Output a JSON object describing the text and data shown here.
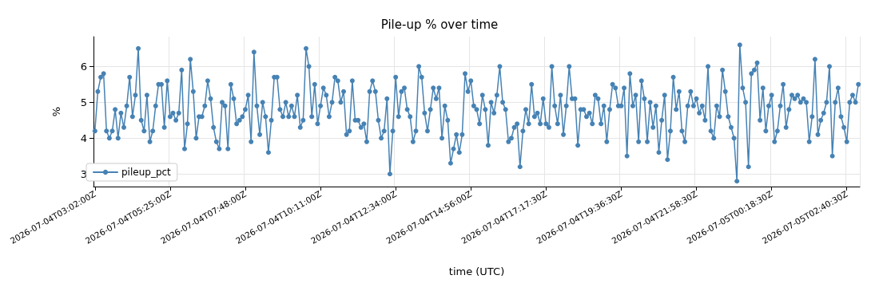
{
  "chart_data": {
    "type": "line",
    "title": "Pile-up % over time",
    "xlabel": "time (UTC)",
    "ylabel": "%",
    "categories": [
      "2026-07-04T03:02:00Z",
      null,
      null,
      null,
      null,
      null,
      null,
      null,
      null,
      null,
      null,
      null,
      null,
      null,
      null,
      null,
      null,
      null,
      null,
      null,
      null,
      null,
      null,
      null,
      null,
      null,
      "2026-07-04T05:25:00Z",
      null,
      null,
      null,
      null,
      null,
      null,
      null,
      null,
      null,
      null,
      null,
      null,
      null,
      null,
      null,
      null,
      null,
      null,
      null,
      null,
      null,
      null,
      null,
      null,
      null,
      "2026-07-04T07:48:00Z",
      null,
      null,
      null,
      null,
      null,
      null,
      null,
      null,
      null,
      null,
      null,
      null,
      null,
      null,
      null,
      null,
      null,
      null,
      null,
      null,
      null,
      null,
      null,
      null,
      null,
      "2026-07-04T10:11:00Z",
      null,
      null,
      null,
      null,
      null,
      null,
      null,
      null,
      null,
      null,
      null,
      null,
      null,
      null,
      null,
      null,
      null,
      null,
      null,
      null,
      null,
      null,
      null,
      null,
      null,
      "2026-07-04T12:34:00Z",
      null,
      null,
      null,
      null,
      null,
      null,
      null,
      null,
      null,
      null,
      null,
      null,
      null,
      null,
      null,
      null,
      null,
      null,
      null,
      null,
      null,
      null,
      null,
      null,
      null,
      "2026-07-04T14:56:00Z",
      null,
      null,
      null,
      null,
      null,
      null,
      null,
      null,
      null,
      null,
      null,
      null,
      null,
      null,
      null,
      null,
      null,
      null,
      null,
      null,
      null,
      null,
      null,
      null,
      null,
      "2026-07-04T17:17:30Z",
      null,
      null,
      null,
      null,
      null,
      null,
      null,
      null,
      null,
      null,
      null,
      null,
      null,
      null,
      null,
      null,
      null,
      null,
      null,
      null,
      null,
      null,
      null,
      null,
      null,
      "2026-07-04T19:36:30Z",
      null,
      null,
      null,
      null,
      null,
      null,
      null,
      null,
      null,
      null,
      null,
      null,
      null,
      null,
      null,
      null,
      null,
      null,
      null,
      null,
      null,
      null,
      null,
      null,
      null,
      "2026-07-04T21:58:30Z",
      null,
      null,
      null,
      null,
      null,
      null,
      null,
      null,
      null,
      null,
      null,
      null,
      null,
      null,
      null,
      null,
      null,
      null,
      null,
      null,
      null,
      null,
      null,
      null,
      null,
      "2026-07-05T00:18:30Z",
      null,
      null,
      null,
      null,
      null,
      null,
      null,
      null,
      null,
      null,
      null,
      null,
      null,
      null,
      null,
      null,
      null,
      null,
      null,
      null,
      null,
      null,
      null,
      null,
      null,
      "2026-07-05T02:40:30Z",
      null,
      null,
      null,
      null
    ],
    "series": [
      {
        "name": "pileup_pct",
        "color": "#4682b4",
        "values": [
          4.2,
          5.3,
          5.7,
          5.8,
          4.2,
          4.0,
          4.2,
          4.8,
          4.0,
          4.7,
          4.3,
          4.9,
          5.7,
          4.6,
          5.2,
          6.5,
          4.5,
          4.2,
          5.2,
          3.9,
          4.2,
          4.9,
          5.5,
          5.5,
          4.3,
          5.6,
          4.6,
          4.7,
          4.5,
          4.7,
          5.9,
          3.7,
          4.4,
          6.2,
          5.3,
          4.0,
          4.6,
          4.6,
          4.9,
          5.6,
          5.1,
          4.3,
          3.9,
          3.7,
          5.0,
          4.9,
          3.7,
          5.5,
          5.1,
          4.4,
          4.5,
          4.6,
          4.8,
          5.2,
          3.9,
          6.4,
          4.9,
          4.1,
          5.0,
          4.6,
          3.6,
          4.5,
          5.7,
          5.7,
          4.8,
          4.6,
          5.0,
          4.6,
          4.9,
          4.6,
          5.2,
          4.3,
          4.5,
          6.5,
          6.0,
          4.6,
          5.5,
          4.4,
          4.9,
          5.4,
          5.2,
          4.6,
          5.0,
          5.7,
          5.6,
          5.0,
          5.3,
          4.1,
          4.2,
          5.6,
          4.5,
          4.5,
          4.3,
          4.4,
          3.9,
          5.3,
          5.6,
          5.3,
          4.5,
          4.0,
          4.2,
          5.1,
          3.0,
          4.2,
          5.7,
          4.6,
          5.3,
          5.4,
          4.8,
          4.6,
          3.9,
          4.2,
          6.0,
          5.7,
          4.7,
          4.2,
          4.8,
          5.4,
          5.1,
          5.4,
          4.0,
          4.9,
          4.5,
          3.3,
          3.7,
          4.1,
          3.6,
          4.1,
          5.8,
          5.3,
          5.6,
          4.9,
          4.8,
          4.4,
          5.2,
          4.8,
          3.8,
          5.0,
          4.7,
          5.2,
          6.0,
          5.0,
          4.8,
          3.9,
          4.0,
          4.3,
          4.4,
          3.2,
          4.2,
          4.8,
          4.4,
          5.5,
          4.6,
          4.7,
          4.4,
          5.1,
          4.4,
          4.3,
          6.0,
          4.9,
          4.4,
          5.2,
          4.1,
          4.9,
          6.0,
          5.1,
          5.1,
          3.8,
          4.8,
          4.8,
          4.6,
          4.7,
          4.4,
          5.2,
          5.1,
          4.4,
          4.9,
          3.9,
          4.8,
          5.5,
          5.4,
          4.9,
          4.9,
          5.4,
          3.5,
          5.8,
          4.9,
          5.2,
          3.9,
          5.6,
          5.1,
          3.9,
          5.0,
          4.3,
          4.9,
          3.6,
          4.5,
          5.2,
          3.4,
          4.2,
          5.7,
          4.8,
          5.3,
          4.2,
          3.9,
          4.9,
          5.3,
          4.9,
          5.1,
          4.7,
          4.9,
          4.5,
          6.0,
          4.2,
          4.0,
          4.9,
          4.6,
          5.9,
          5.3,
          4.6,
          4.3,
          4.0,
          2.8,
          6.6,
          5.4,
          5.0,
          3.2,
          5.8,
          5.9,
          6.1,
          4.5,
          5.4,
          4.2,
          4.9,
          5.2,
          3.9,
          4.2,
          4.9,
          5.5,
          4.3,
          4.8,
          5.2,
          5.1,
          5.2,
          5.0,
          5.1,
          5.0,
          3.9,
          4.6,
          6.2,
          4.1,
          4.5,
          4.7,
          5.0,
          6.0,
          3.5,
          5.0,
          5.4,
          4.6,
          4.3,
          3.9,
          5.0,
          5.2,
          5.0,
          5.5
        ]
      }
    ],
    "ylim": [
      2.65,
      6.83
    ],
    "yticks": [
      3,
      4,
      5,
      6
    ],
    "grid": true,
    "legend": "bottom left",
    "marker": "circle",
    "line_style": "solid"
  }
}
